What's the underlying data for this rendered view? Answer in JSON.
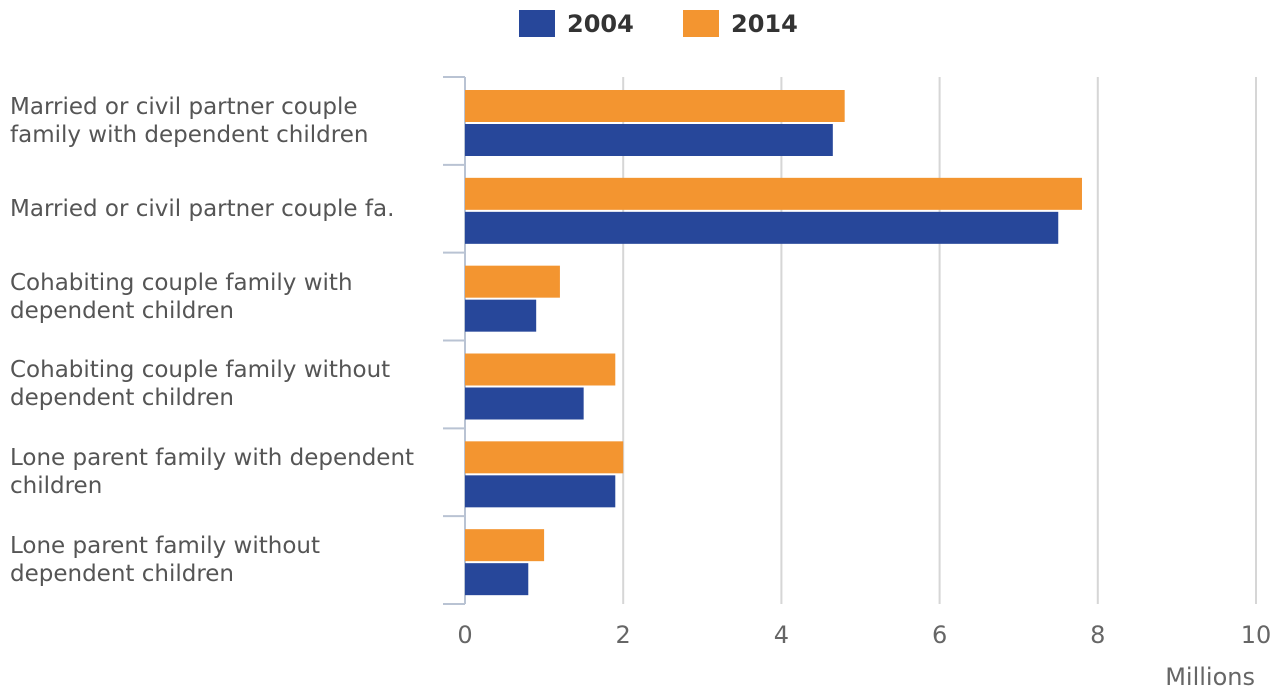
{
  "chart_data": {
    "type": "hbar",
    "categories": [
      "Married or civil partner couple family with dependent children",
      "Married or civil partner couple fa.",
      "Cohabiting couple family with dependent children",
      "Cohabiting couple family without dependent children",
      "Lone parent family with dependent children",
      "Lone parent family without dependent children"
    ],
    "series": [
      {
        "name": "2004",
        "color": "#27479a",
        "values": [
          4.65,
          7.5,
          0.9,
          1.5,
          1.9,
          0.8
        ]
      },
      {
        "name": "2014",
        "color": "#f39530",
        "values": [
          4.8,
          7.8,
          1.2,
          1.9,
          2.0,
          1.0
        ]
      }
    ],
    "xlabel": "Millions",
    "xlim": [
      0,
      10
    ],
    "xticks": [
      0,
      2,
      4,
      6,
      8,
      10
    ],
    "grid": true,
    "legend": "top"
  }
}
